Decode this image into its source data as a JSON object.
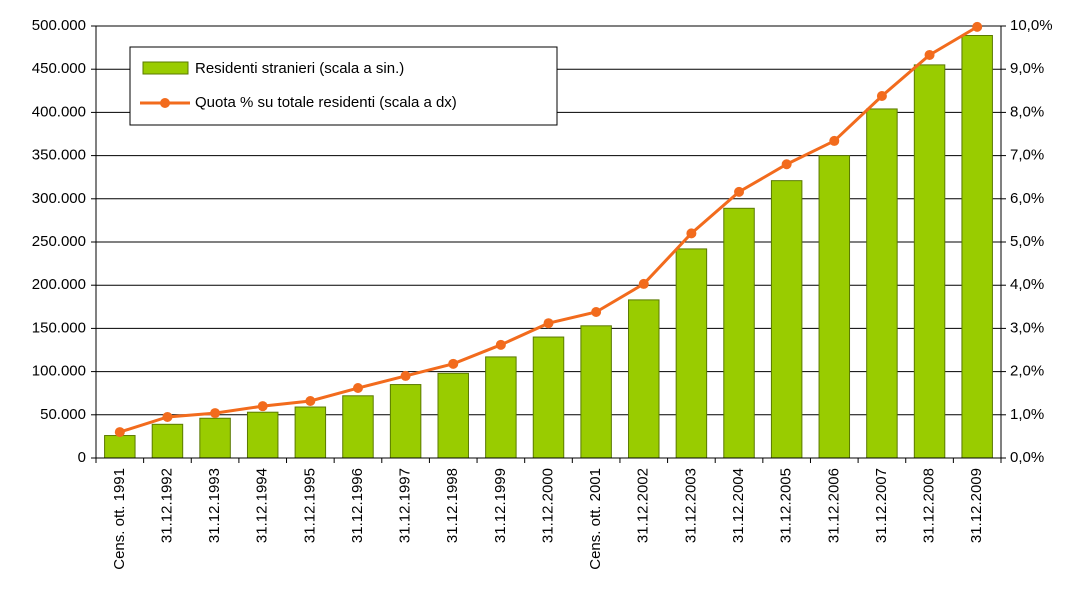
{
  "chart_data": {
    "type": "bar",
    "categories": [
      "Cens. ott. 1991",
      "31.12.1992",
      "31.12.1993",
      "31.12.1994",
      "31.12.1995",
      "31.12.1996",
      "31.12.1997",
      "31.12.1998",
      "31.12.1999",
      "31.12.2000",
      "Cens. ott. 2001",
      "31.12.2002",
      "31.12.2003",
      "31.12.2004",
      "31.12.2005",
      "31.12.2006",
      "31.12.2007",
      "31.12.2008",
      "31.12.2009"
    ],
    "series": [
      {
        "name": "Residenti stranieri (scala a sin.)",
        "type": "bar",
        "color": "#99cc00",
        "values": [
          26000,
          39000,
          46000,
          53000,
          59000,
          72000,
          85000,
          98000,
          117000,
          140000,
          153000,
          183000,
          242000,
          289000,
          321000,
          350000,
          404000,
          455000,
          489000
        ]
      },
      {
        "name": "Quota % su totale residenti (scala a dx)",
        "type": "line",
        "axis": "y2",
        "color": "#f26b1d",
        "values": [
          0.6,
          0.95,
          1.04,
          1.2,
          1.32,
          1.62,
          1.9,
          2.18,
          2.62,
          3.12,
          3.38,
          4.03,
          5.2,
          6.16,
          6.8,
          7.34,
          8.38,
          9.33,
          9.98
        ]
      }
    ],
    "ylim": [
      0,
      500000
    ],
    "yticks": [
      0,
      {
        "value": 50000,
        "label": "50.000"
      },
      {
        "value": 100000,
        "label": "100.000"
      },
      {
        "value": 150000,
        "label": "150.000"
      },
      {
        "value": 200000,
        "label": "200.000"
      },
      {
        "value": 250000,
        "label": "250.000"
      },
      {
        "value": 300000,
        "label": "300.000"
      },
      {
        "value": 350000,
        "label": "350.000"
      },
      {
        "value": 400000,
        "label": "400.000"
      },
      {
        "value": 450000,
        "label": "450.000"
      },
      {
        "value": 500000,
        "label": "500.000"
      }
    ],
    "y2lim": [
      0,
      10
    ],
    "y2ticks": [
      {
        "value": 0,
        "label": "0,0%"
      },
      {
        "value": 1,
        "label": "1,0%"
      },
      {
        "value": 2,
        "label": "2,0%"
      },
      {
        "value": 3,
        "label": "3,0%"
      },
      {
        "value": 4,
        "label": "4,0%"
      },
      {
        "value": 5,
        "label": "5,0%"
      },
      {
        "value": 6,
        "label": "6,0%"
      },
      {
        "value": 7,
        "label": "7,0%"
      },
      {
        "value": 8,
        "label": "8,0%"
      },
      {
        "value": 9,
        "label": "9,0%"
      },
      {
        "value": 10,
        "label": "10,0%"
      }
    ],
    "grid": true,
    "legend": "top-left"
  }
}
